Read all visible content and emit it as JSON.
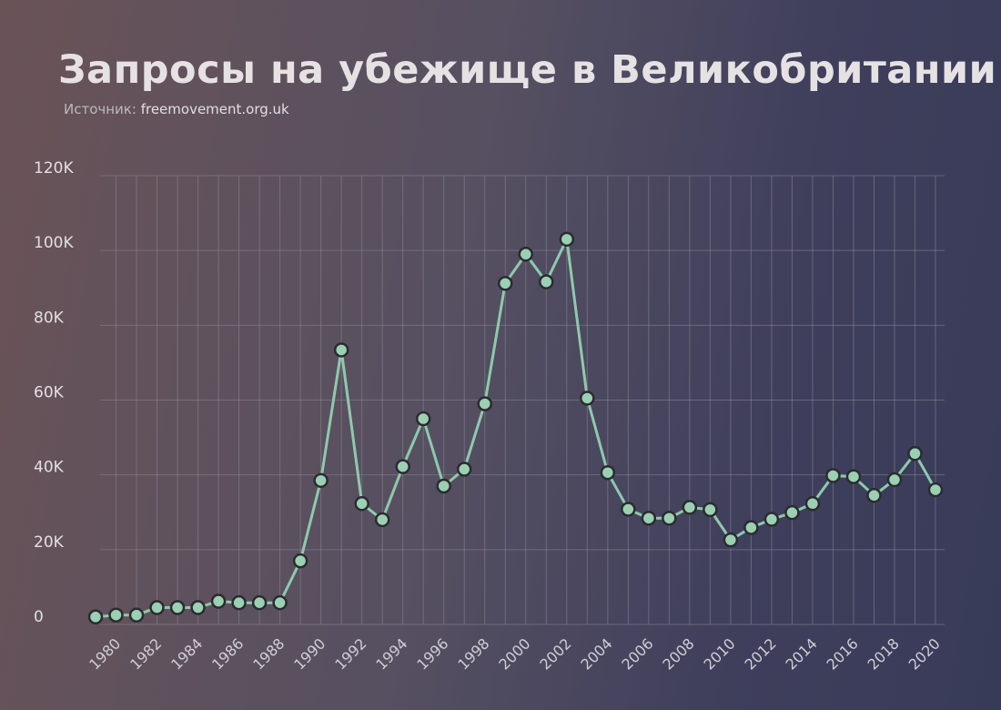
{
  "header": {
    "title": "Запросы на убежище в Великобритании",
    "source_label": "Источник:",
    "source_value": "freemovement.org.uk"
  },
  "colors": {
    "line": "#8fc9ac",
    "marker_fill": "#9bd0b3",
    "marker_stroke": "#2b2b30",
    "grid": "#8a8697"
  },
  "chart_data": {
    "type": "line",
    "title": "Запросы на убежище в Великобритании",
    "xlabel": "",
    "ylabel": "",
    "xlim": [
      1979,
      2020
    ],
    "ylim": [
      0,
      120000
    ],
    "grid": true,
    "yticks": [
      0,
      20000,
      40000,
      60000,
      80000,
      100000,
      120000
    ],
    "ytick_labels": [
      "0",
      "20K",
      "40K",
      "60K",
      "80K",
      "100K",
      "120K"
    ],
    "xticks": [
      1980,
      1982,
      1984,
      1986,
      1988,
      1990,
      1992,
      1994,
      1996,
      1998,
      2000,
      2002,
      2004,
      2006,
      2008,
      2010,
      2012,
      2014,
      2016,
      2018,
      2020
    ],
    "series": [
      {
        "x": [
          1979,
          1980,
          1981,
          1982,
          1983,
          1984,
          1985,
          1986,
          1987,
          1988,
          1989,
          1990,
          1991,
          1992,
          1993,
          1994,
          1995,
          1996,
          1997,
          1998,
          1999,
          2000,
          2001,
          2002,
          2003,
          2004,
          2005,
          2006,
          2007,
          2008,
          2009,
          2010,
          2011,
          2012,
          2013,
          2014,
          2015,
          2016,
          2017,
          2018,
          2019,
          2020
        ],
        "values": [
          2000,
          2500,
          2500,
          4500,
          4500,
          4500,
          6200,
          5800,
          5800,
          5800,
          17000,
          38500,
          73400,
          32300,
          28000,
          42200,
          55000,
          37000,
          41500,
          59000,
          91200,
          99000,
          91600,
          103000,
          60500,
          40600,
          30800,
          28400,
          28400,
          31300,
          30700,
          22600,
          25900,
          28100,
          29900,
          32300,
          39800,
          39500,
          34500,
          38700,
          45700,
          36000
        ]
      }
    ]
  }
}
